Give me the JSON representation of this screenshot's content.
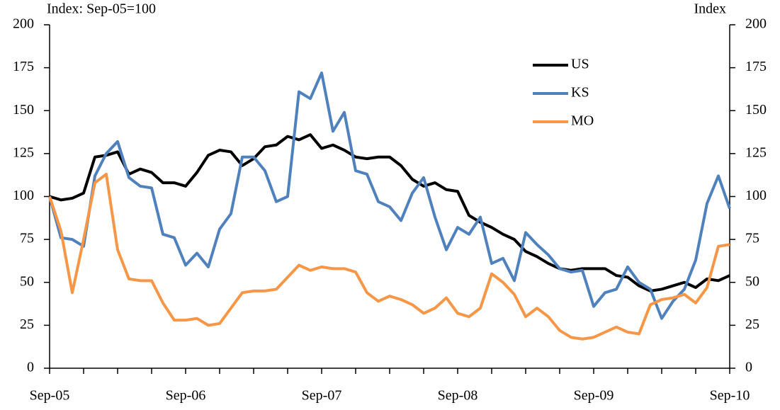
{
  "chart_data": {
    "type": "line",
    "y_label": "Index: Sep-05=100",
    "y2_label": "Index",
    "categories": [
      "Sep-05",
      null,
      null,
      null,
      null,
      null,
      null,
      null,
      null,
      null,
      null,
      null,
      "Sep-06",
      null,
      null,
      null,
      null,
      null,
      null,
      null,
      null,
      null,
      null,
      null,
      "Sep-07",
      null,
      null,
      null,
      null,
      null,
      null,
      null,
      null,
      null,
      null,
      null,
      "Sep-08",
      null,
      null,
      null,
      null,
      null,
      null,
      null,
      null,
      null,
      null,
      null,
      "Sep-09",
      null,
      null,
      null,
      null,
      null,
      null,
      null,
      null,
      null,
      null,
      null,
      "Sep-10"
    ],
    "series": [
      {
        "name": "US",
        "color": "#000000",
        "values": [
          100,
          98,
          99,
          102,
          123,
          124,
          126,
          113,
          116,
          114,
          108,
          108,
          106,
          114,
          124,
          127,
          126,
          118,
          122,
          129,
          130,
          135,
          133,
          136,
          128,
          130,
          127,
          123,
          122,
          123,
          123,
          118,
          110,
          106,
          108,
          104,
          103,
          89,
          85,
          82,
          78,
          75,
          68,
          65,
          61,
          58,
          57,
          58,
          58,
          58,
          54,
          53,
          48,
          45,
          46,
          48,
          50,
          47,
          52,
          51,
          54
        ]
      },
      {
        "name": "KS",
        "color": "#4f81bd",
        "values": [
          100,
          76,
          75,
          71,
          112,
          125,
          132,
          111,
          106,
          105,
          78,
          76,
          60,
          67,
          59,
          81,
          90,
          123,
          123,
          115,
          97,
          100,
          161,
          157,
          172,
          138,
          149,
          115,
          113,
          97,
          94,
          86,
          102,
          111,
          88,
          69,
          82,
          78,
          88,
          61,
          64,
          51,
          79,
          72,
          66,
          58,
          56,
          57,
          36,
          44,
          46,
          59,
          50,
          46,
          29,
          39,
          46,
          63,
          96,
          112,
          93
        ]
      },
      {
        "name": "MO",
        "color": "#f79646",
        "values": [
          100,
          80,
          44,
          75,
          108,
          113,
          69,
          52,
          51,
          51,
          38,
          28,
          28,
          29,
          25,
          26,
          35,
          44,
          45,
          45,
          46,
          53,
          60,
          57,
          59,
          58,
          58,
          56,
          44,
          39,
          42,
          40,
          37,
          32,
          35,
          41,
          32,
          30,
          35,
          55,
          50,
          43,
          30,
          35,
          30,
          22,
          18,
          17,
          18,
          21,
          24,
          21,
          20,
          37,
          40,
          41,
          43,
          38,
          47,
          71,
          72
        ]
      }
    ],
    "ylim": [
      0,
      200
    ],
    "yticks": [
      0,
      25,
      50,
      75,
      100,
      125,
      150,
      175,
      200
    ],
    "y2lim": [
      0,
      200
    ],
    "y2ticks": [
      0,
      25,
      50,
      75,
      100,
      125,
      150,
      175,
      200
    ],
    "grid": false,
    "legend": "upper right"
  }
}
